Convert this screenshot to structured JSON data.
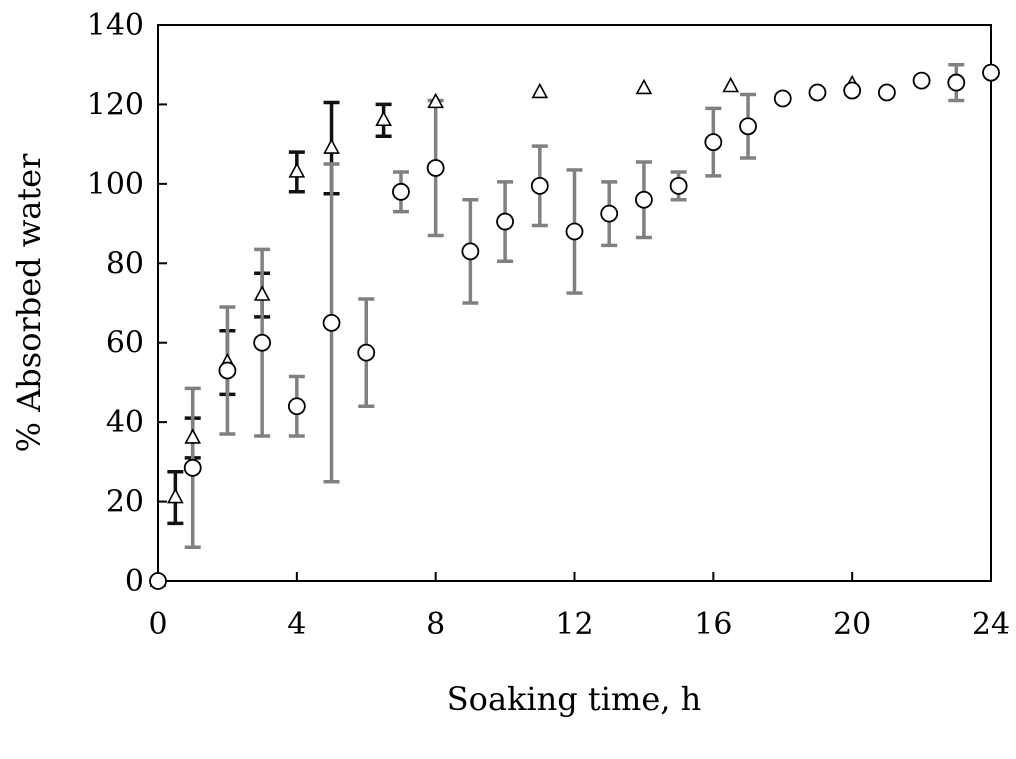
{
  "chart_data": {
    "type": "scatter",
    "title": "",
    "xlabel": "Soaking time, h",
    "ylabel": "% Absorbed water",
    "xlim": [
      0,
      24
    ],
    "ylim": [
      0,
      140
    ],
    "x_ticks": [
      "0",
      "4",
      "8",
      "12",
      "16",
      "20",
      "24"
    ],
    "y_ticks": [
      "0",
      "20",
      "40",
      "60",
      "80",
      "100",
      "120",
      "140"
    ],
    "grid": false,
    "legend": "none",
    "series": [
      {
        "marker": "triangle",
        "error_bar_color": "#111111",
        "points": [
          {
            "x": 0,
            "y": 0,
            "err": 0
          },
          {
            "x": 0.5,
            "y": 21,
            "err": 6.5
          },
          {
            "x": 1,
            "y": 36,
            "err": 5
          },
          {
            "x": 2,
            "y": 55,
            "err": 8
          },
          {
            "x": 3,
            "y": 72,
            "err": 5.5
          },
          {
            "x": 4,
            "y": 103,
            "err": 5
          },
          {
            "x": 5,
            "y": 109,
            "err": 11.5
          },
          {
            "x": 6.5,
            "y": 116,
            "err": 4
          },
          {
            "x": 8,
            "y": 120.5,
            "err": 0
          },
          {
            "x": 11,
            "y": 123,
            "err": 0
          },
          {
            "x": 14,
            "y": 124,
            "err": 0
          },
          {
            "x": 16.5,
            "y": 124.5,
            "err": 0
          },
          {
            "x": 20,
            "y": 125,
            "err": 0
          }
        ]
      },
      {
        "marker": "circle",
        "error_bar_color": "#808080",
        "points": [
          {
            "x": 0,
            "y": 0,
            "err": 0
          },
          {
            "x": 1,
            "y": 28.5,
            "err": 20
          },
          {
            "x": 2,
            "y": 53,
            "err": 16
          },
          {
            "x": 3,
            "y": 60,
            "err": 23.5
          },
          {
            "x": 4,
            "y": 44,
            "err": 7.5
          },
          {
            "x": 5,
            "y": 65,
            "err": 40
          },
          {
            "x": 6,
            "y": 57.5,
            "err": 13.5
          },
          {
            "x": 7,
            "y": 98,
            "err": 5
          },
          {
            "x": 8,
            "y": 104,
            "err": 17
          },
          {
            "x": 9,
            "y": 83,
            "err": 13
          },
          {
            "x": 10,
            "y": 90.5,
            "err": 10
          },
          {
            "x": 11,
            "y": 99.5,
            "err": 10
          },
          {
            "x": 12,
            "y": 88,
            "err": 15.5
          },
          {
            "x": 13,
            "y": 92.5,
            "err": 8
          },
          {
            "x": 14,
            "y": 96,
            "err": 9.5
          },
          {
            "x": 15,
            "y": 99.5,
            "err": 3.5
          },
          {
            "x": 16,
            "y": 110.5,
            "err": 8.5
          },
          {
            "x": 17,
            "y": 114.5,
            "err": 8
          },
          {
            "x": 18,
            "y": 121.5,
            "err": 0
          },
          {
            "x": 19,
            "y": 123,
            "err": 0
          },
          {
            "x": 20,
            "y": 123.5,
            "err": 0
          },
          {
            "x": 21,
            "y": 123,
            "err": 0
          },
          {
            "x": 22,
            "y": 126,
            "err": 0
          },
          {
            "x": 23,
            "y": 125.5,
            "err": 4.5
          },
          {
            "x": 24,
            "y": 128,
            "err": 0
          }
        ]
      }
    ]
  }
}
